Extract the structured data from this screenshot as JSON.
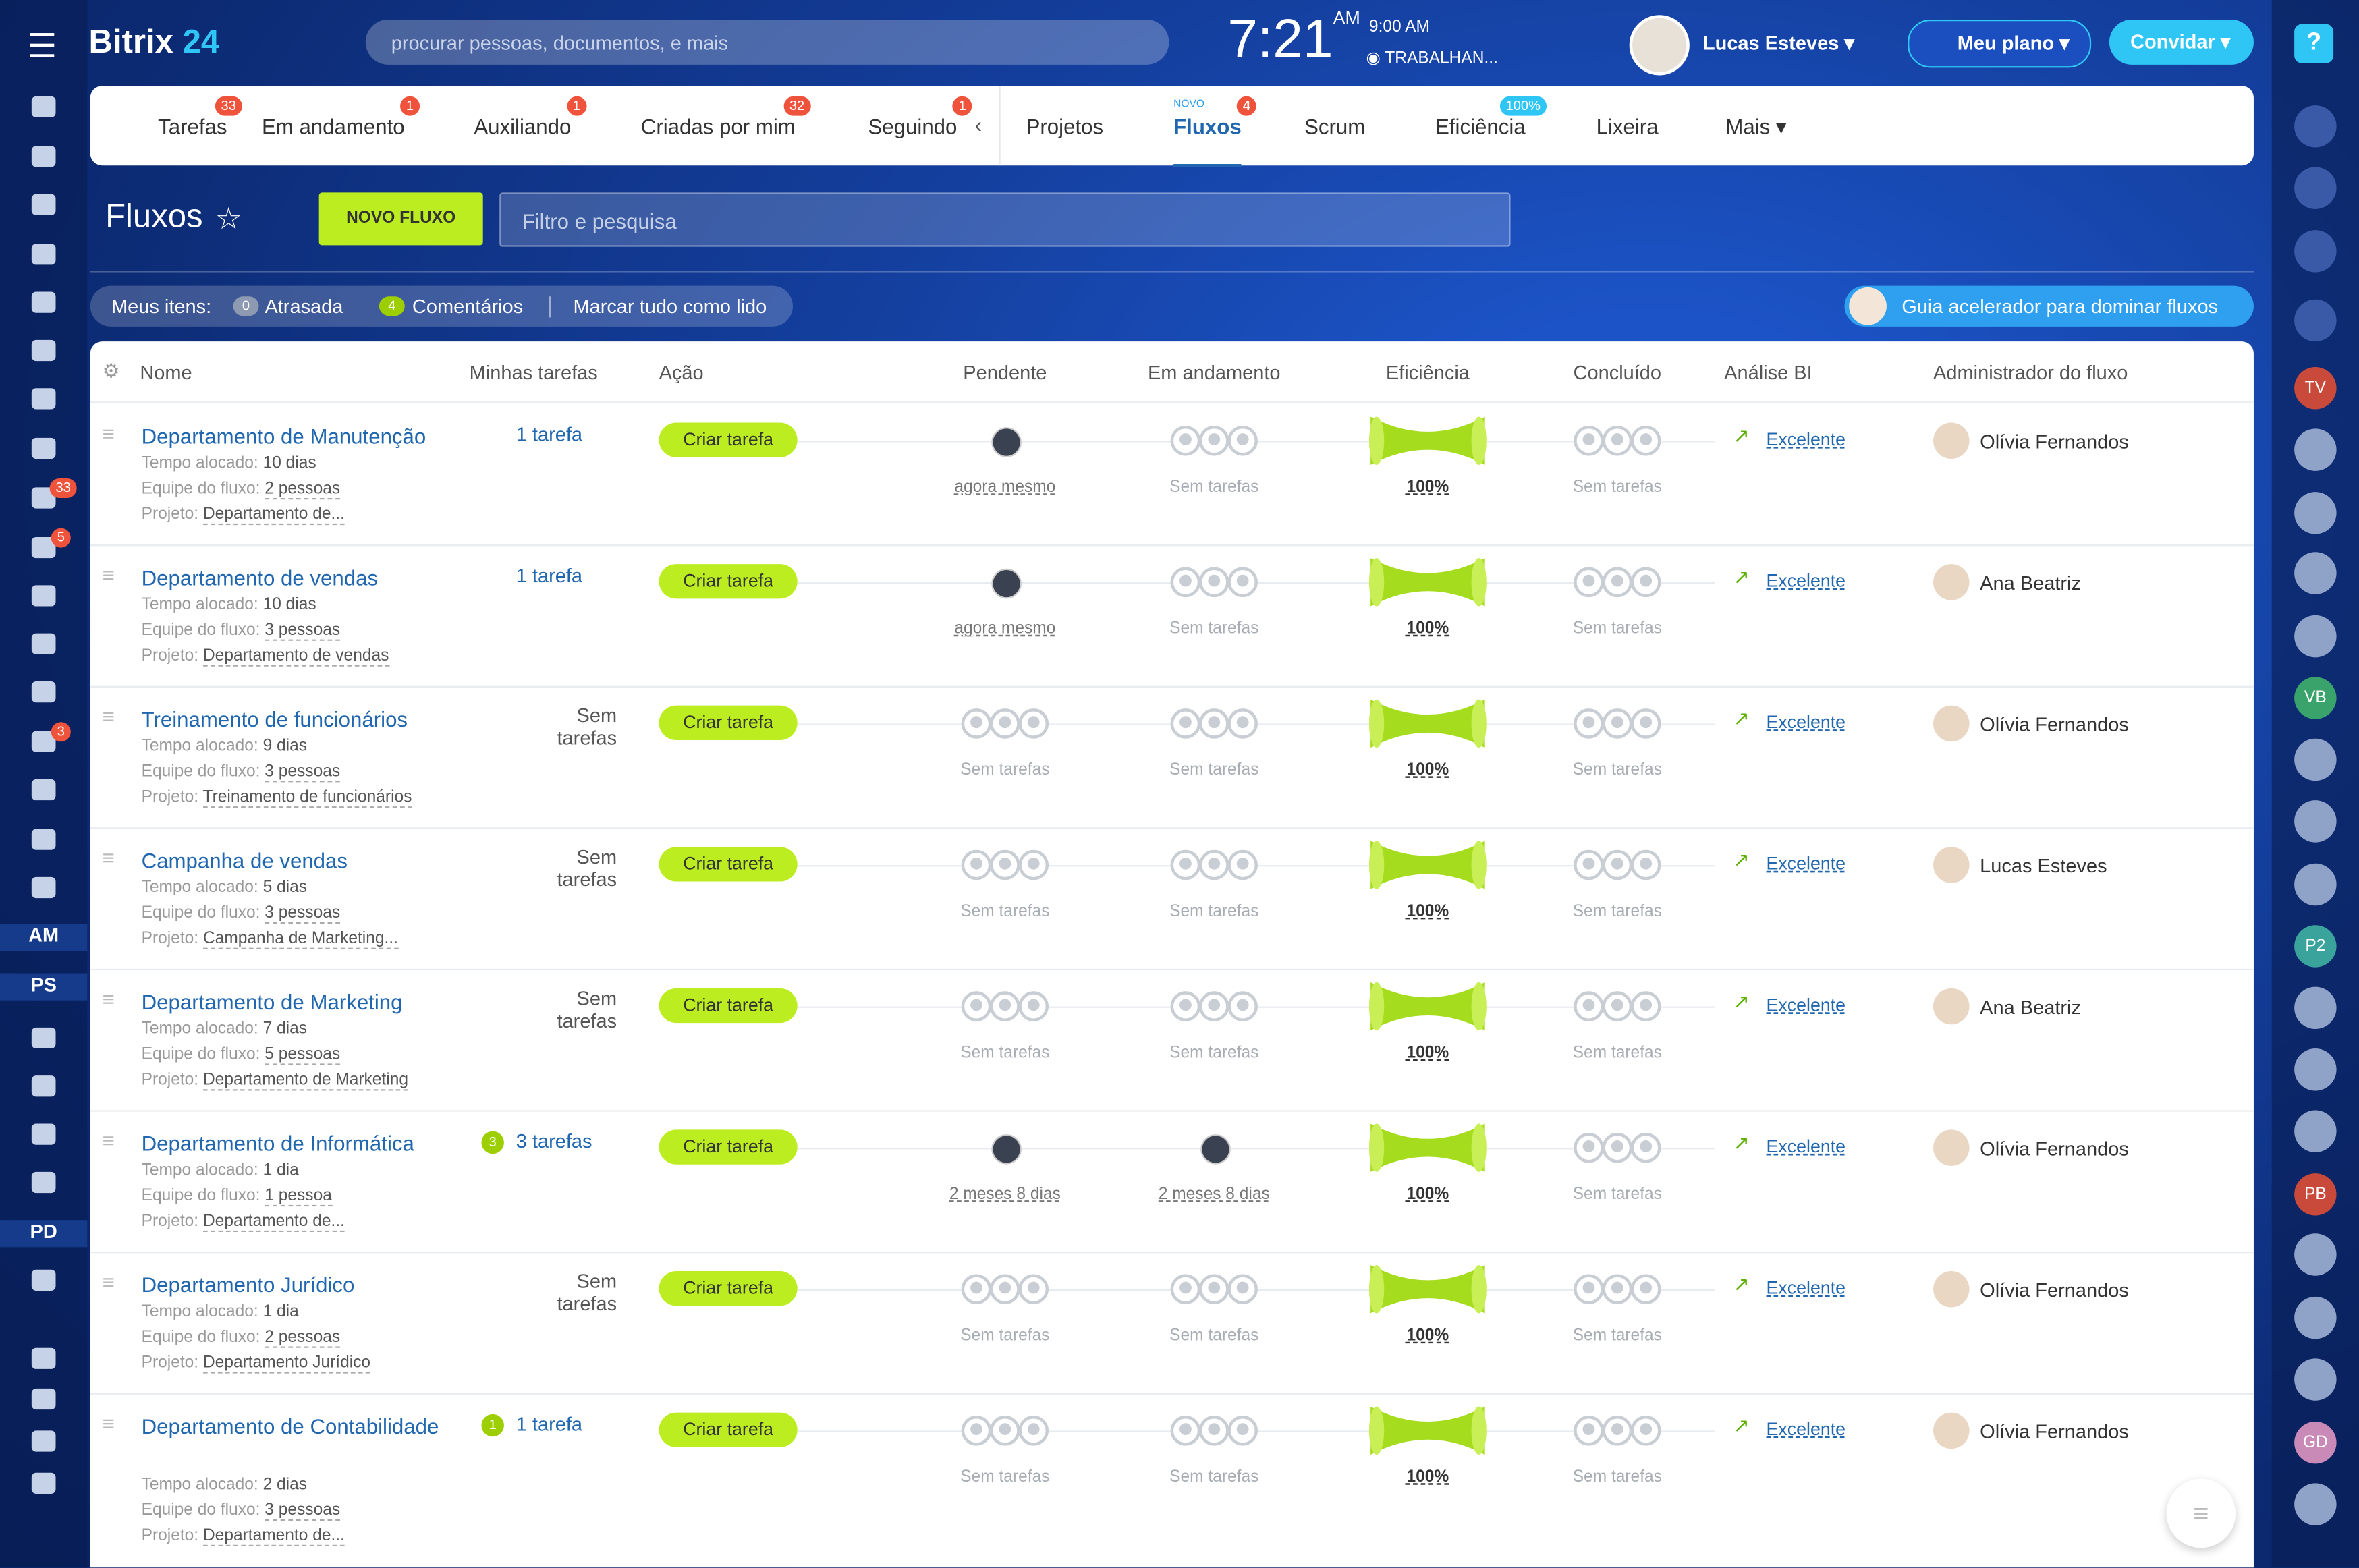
{
  "sidebar": {
    "brand": "Bitrix",
    "brand_num": "24",
    "texts": [
      "AM",
      "PS",
      "PD"
    ],
    "badges": [
      "33",
      "5",
      "3"
    ]
  },
  "header": {
    "search": "procurar pessoas, documentos, e mais",
    "time": "7:21",
    "ampm": "AM",
    "alarm": "9:00 AM",
    "status": "TRABALHAN...",
    "user": "Lucas Esteves",
    "plan": "Meu plano",
    "invite": "Convidar"
  },
  "tabs": [
    {
      "label": "Tarefas",
      "badge": "33"
    },
    {
      "label": "Em andamento",
      "badge": "1"
    },
    {
      "label": "Auxiliando",
      "badge": "1"
    },
    {
      "label": "Criadas por mim",
      "badge": "32"
    },
    {
      "label": "Seguindo",
      "badge": "1"
    },
    {
      "label": "Projetos"
    },
    {
      "label": "Fluxos",
      "badge": "4",
      "tag": "NOVO"
    },
    {
      "label": "Scrum"
    },
    {
      "label": "Eficiência",
      "badge": "100%"
    },
    {
      "label": "Lixeira"
    },
    {
      "label": "Mais"
    }
  ],
  "toolbar": {
    "title": "Fluxos",
    "new_button": "NOVO FLUXO",
    "filter": "Filtro e pesquisa"
  },
  "counters": {
    "label": "Meus itens:",
    "overdue_count": "0",
    "overdue": "Atrasada",
    "comments_count": "4",
    "comments": "Comentários",
    "mark_read": "Marcar tudo como lido",
    "guide": "Guia acelerador para dominar fluxos"
  },
  "table": {
    "columns": [
      "Nome",
      "Minhas tarefas",
      "Ação",
      "Pendente",
      "Em andamento",
      "Eficiência",
      "Concluído",
      "Análise BI",
      "Administrador do fluxo"
    ],
    "field_labels": {
      "time": "Tempo alocado:",
      "team": "Equipe do fluxo:",
      "project": "Projeto:"
    },
    "action": "Criar tarefa",
    "rows": [
      {
        "name": "Departamento de Manutenção",
        "time": "10 dias",
        "team": "2 pessoas",
        "project": "Departamento de...",
        "my_tasks": "1 tarefa",
        "pending": "agora mesmo",
        "in_progress": "Sem tarefas",
        "efficiency": "100%",
        "done": "Sem tarefas",
        "bi": "Excelente",
        "admin": "Olívia Fernandos"
      },
      {
        "name": "Departamento de vendas",
        "time": "10 dias",
        "team": "3 pessoas",
        "project": "Departamento de vendas",
        "my_tasks": "1 tarefa",
        "pending": "agora mesmo",
        "in_progress": "Sem tarefas",
        "efficiency": "100%",
        "done": "Sem tarefas",
        "bi": "Excelente",
        "admin": "Ana Beatriz"
      },
      {
        "name": "Treinamento de funcionários",
        "time": "9 dias",
        "team": "3 pessoas",
        "project": "Treinamento de funcionários",
        "my_tasks": "Sem tarefas",
        "pending": "Sem tarefas",
        "in_progress": "Sem tarefas",
        "efficiency": "100%",
        "done": "Sem tarefas",
        "bi": "Excelente",
        "admin": "Olívia Fernandos"
      },
      {
        "name": "Campanha de vendas",
        "time": "5 dias",
        "team": "3 pessoas",
        "project": "Campanha de Marketing...",
        "my_tasks": "Sem tarefas",
        "pending": "Sem tarefas",
        "in_progress": "Sem tarefas",
        "efficiency": "100%",
        "done": "Sem tarefas",
        "bi": "Excelente",
        "admin": "Lucas Esteves"
      },
      {
        "name": "Departamento de Marketing",
        "time": "7 dias",
        "team": "5 pessoas",
        "project": "Departamento de Marketing",
        "my_tasks": "Sem tarefas",
        "pending": "Sem tarefas",
        "in_progress": "Sem tarefas",
        "efficiency": "100%",
        "done": "Sem tarefas",
        "bi": "Excelente",
        "admin": "Ana Beatriz"
      },
      {
        "name": "Departamento de Informática",
        "time": "1 dia",
        "team": "1 pessoa",
        "project": "Departamento de...",
        "my_tasks_count": "3",
        "my_tasks": "3 tarefas",
        "pending": "2 meses 8 dias",
        "in_progress": "2 meses 8 dias",
        "efficiency": "100%",
        "done": "Sem tarefas",
        "bi": "Excelente",
        "admin": "Olívia Fernandos"
      },
      {
        "name": "Departamento Jurídico",
        "time": "1 dia",
        "team": "2 pessoas",
        "project": "Departamento Jurídico",
        "my_tasks": "Sem tarefas",
        "pending": "Sem tarefas",
        "in_progress": "Sem tarefas",
        "efficiency": "100%",
        "done": "Sem tarefas",
        "bi": "Excelente",
        "admin": "Olívia Fernandos"
      },
      {
        "name": "Departamento de Contabilidade",
        "time": "2 dias",
        "team": "3 pessoas",
        "project": "Departamento de...",
        "my_tasks_count": "1",
        "my_tasks": "1 tarefa",
        "pending": "Sem tarefas",
        "in_progress": "Sem tarefas",
        "efficiency": "100%",
        "done": "Sem tarefas",
        "bi": "Excelente",
        "admin": "Olívia Fernandos"
      }
    ]
  },
  "right_bar": {
    "avatars": [
      "TV",
      "VB",
      "P2",
      "PB",
      "GD"
    ]
  }
}
